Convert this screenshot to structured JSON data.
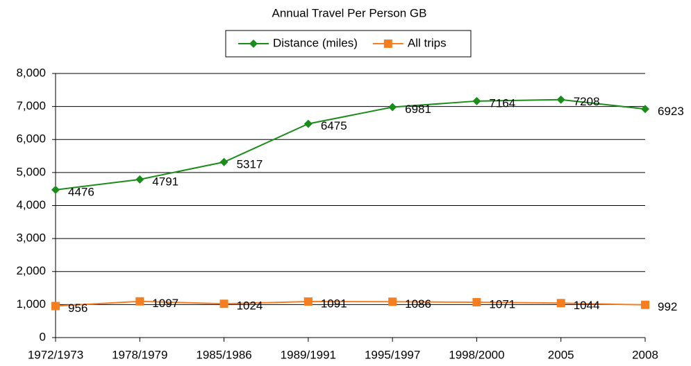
{
  "chart_data": {
    "type": "line",
    "title": "Annual Travel Per Person GB",
    "categories": [
      "1972/1973",
      "1978/1979",
      "1985/1986",
      "1989/1991",
      "1995/1997",
      "1998/2000",
      "2005",
      "2008"
    ],
    "series": [
      {
        "name": "Distance (miles)",
        "color": "#1a8c1a",
        "marker": "diamond",
        "values": [
          4476,
          4791,
          5317,
          6475,
          6981,
          7164,
          7208,
          6923
        ]
      },
      {
        "name": "All trips",
        "color": "#f57f20",
        "marker": "square",
        "values": [
          956,
          1097,
          1024,
          1091,
          1086,
          1071,
          1044,
          992
        ]
      }
    ],
    "ylim": [
      0,
      8000
    ],
    "yticks": [
      0,
      {
        "value": 1000,
        "label": "1,000"
      },
      {
        "value": 2000,
        "label": "2,000"
      },
      {
        "value": 3000,
        "label": "3,000"
      },
      {
        "value": 4000,
        "label": "4,000"
      },
      {
        "value": 5000,
        "label": "5,000"
      },
      {
        "value": 6000,
        "label": "6,000"
      },
      {
        "value": 7000,
        "label": "7,000"
      },
      {
        "value": 8000,
        "label": "8,000"
      }
    ],
    "grid": true,
    "legend": "top"
  }
}
